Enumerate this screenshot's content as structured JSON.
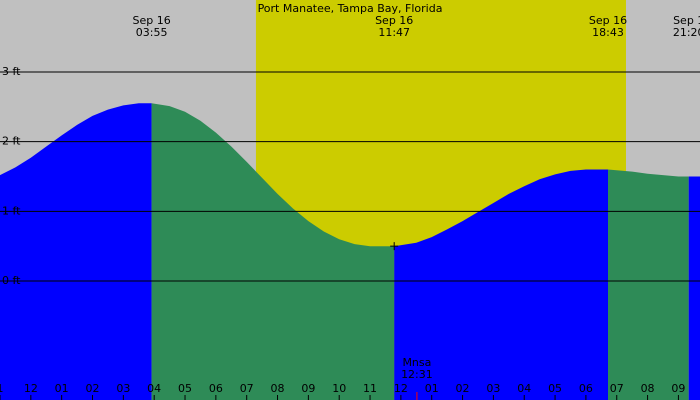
{
  "chart_data": {
    "type": "area",
    "title": "Port Manatee, Tampa Bay, Florida",
    "xlabel": "",
    "ylabel": "",
    "y_unit": "ft",
    "x_unit": "hour",
    "x_range": [
      -1.0,
      21.7
    ],
    "ylim": [
      -1.32,
      3.2
    ],
    "grid": true,
    "y_gridlines": [
      {
        "value": 3,
        "label": "3 ft"
      },
      {
        "value": 2,
        "label": "2 ft"
      },
      {
        "value": 1,
        "label": "1 ft"
      },
      {
        "value": 0,
        "label": "0 ft"
      }
    ],
    "x_ticks": [
      {
        "value": -1,
        "label": "1"
      },
      {
        "value": 0,
        "label": "12"
      },
      {
        "value": 1,
        "label": "01"
      },
      {
        "value": 2,
        "label": "02"
      },
      {
        "value": 3,
        "label": "03"
      },
      {
        "value": 4,
        "label": "04"
      },
      {
        "value": 5,
        "label": "05"
      },
      {
        "value": 6,
        "label": "06"
      },
      {
        "value": 7,
        "label": "07"
      },
      {
        "value": 8,
        "label": "08"
      },
      {
        "value": 9,
        "label": "09"
      },
      {
        "value": 10,
        "label": "10"
      },
      {
        "value": 11,
        "label": "11"
      },
      {
        "value": 12,
        "label": "12"
      },
      {
        "value": 13,
        "label": "01"
      },
      {
        "value": 14,
        "label": "02"
      },
      {
        "value": 15,
        "label": "03"
      },
      {
        "value": 16,
        "label": "04"
      },
      {
        "value": 17,
        "label": "05"
      },
      {
        "value": 18,
        "label": "06"
      },
      {
        "value": 19,
        "label": "07"
      },
      {
        "value": 20,
        "label": "08"
      },
      {
        "value": 21,
        "label": "09"
      }
    ],
    "daylight": {
      "start": 7.3,
      "end": 19.3
    },
    "tide_events": [
      {
        "time": 3.917,
        "height": 2.55,
        "date_label": "Sep 16",
        "time_label": "03:55",
        "type": "high"
      },
      {
        "time": 11.783,
        "height": 0.5,
        "date_label": "Sep 16",
        "time_label": "11:47",
        "type": "low"
      },
      {
        "time": 18.717,
        "height": 1.6,
        "date_label": "Sep 16",
        "time_label": "18:43",
        "type": "high"
      },
      {
        "time": 21.333,
        "height": 1.5,
        "date_label": "Sep 1",
        "time_label": "21:20",
        "type": "low"
      }
    ],
    "series": [
      {
        "x": [
          -1,
          -0.5,
          0,
          0.5,
          1,
          1.5,
          2,
          2.5,
          3,
          3.5,
          3.917,
          4.5,
          5,
          5.5,
          6,
          6.5,
          7,
          7.5,
          8,
          8.5,
          9,
          9.5,
          10,
          10.5,
          11,
          11.5,
          11.783,
          12.5,
          13,
          13.5,
          14,
          14.5,
          15,
          15.5,
          16,
          16.5,
          17,
          17.5,
          18,
          18.5,
          18.717,
          19.5,
          20,
          20.5,
          21,
          21.333,
          21.7
        ],
        "values": [
          1.52,
          1.63,
          1.77,
          1.93,
          2.09,
          2.24,
          2.37,
          2.46,
          2.52,
          2.55,
          2.55,
          2.51,
          2.43,
          2.3,
          2.13,
          1.93,
          1.71,
          1.48,
          1.25,
          1.04,
          0.86,
          0.71,
          0.6,
          0.53,
          0.5,
          0.5,
          0.5,
          0.55,
          0.63,
          0.74,
          0.86,
          0.99,
          1.12,
          1.25,
          1.36,
          1.46,
          1.53,
          1.58,
          1.6,
          1.6,
          1.6,
          1.57,
          1.54,
          1.52,
          1.5,
          1.5,
          1.5
        ]
      }
    ],
    "moon": {
      "label": "Mnsa",
      "time": "12:31",
      "x": 12.52
    },
    "colors": {
      "background": "#c0c0c0",
      "daylight": "#cccc00",
      "rising": "#0000ff",
      "falling": "#2e8b57",
      "grid": "#000000",
      "moon_tick": "#ff0000"
    }
  }
}
